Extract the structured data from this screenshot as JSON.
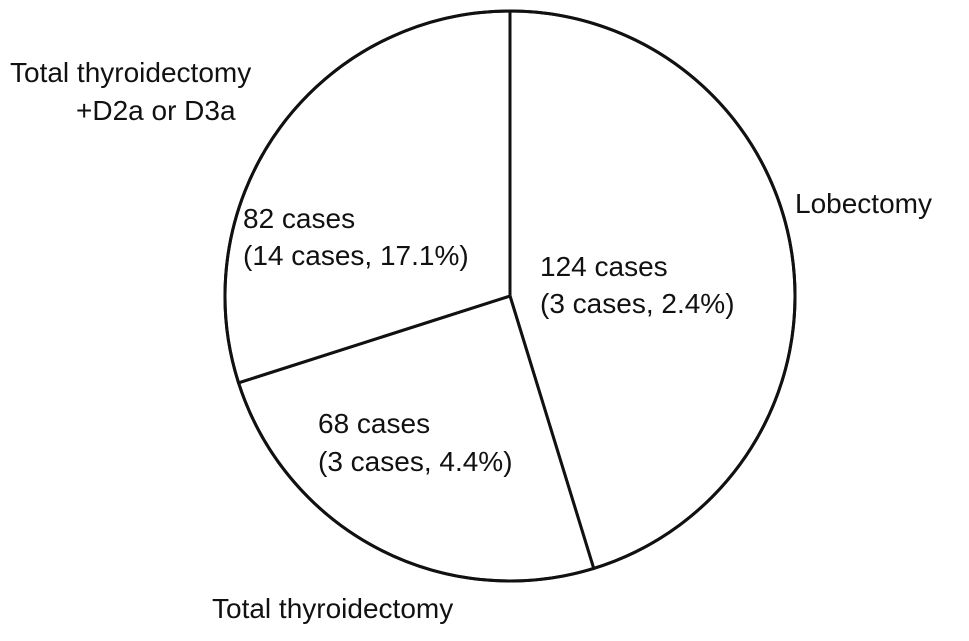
{
  "chart_data": {
    "type": "pie",
    "start_angle_deg": 0,
    "direction": "clockwise",
    "slices": [
      {
        "name": "Lobectomy",
        "value": 124,
        "count_label": "124 cases",
        "detail_label": "(3 cases, 2.4%)"
      },
      {
        "name": "Total thyroidectomy",
        "value": 68,
        "count_label": "68 cases",
        "detail_label": "(3 cases, 4.4%)"
      },
      {
        "name": "Total thyroidectomy +D2a or D3a",
        "name_lines": [
          "Total thyroidectomy",
          "+D2a or D3a"
        ],
        "value": 82,
        "count_label": "82 cases",
        "detail_label": "(14 cases, 17.1%)"
      }
    ],
    "colors": {
      "fill": "#ffffff",
      "stroke": "#111111",
      "text": "#111111"
    }
  }
}
